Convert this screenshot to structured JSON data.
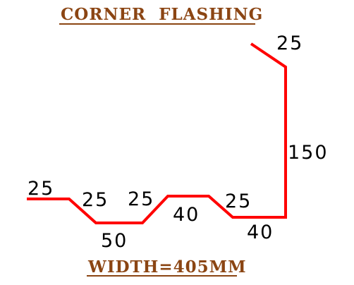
{
  "title": "CORNER  FLASHING",
  "footer": "WIDTH=405MM",
  "colors": {
    "profile": "#ff0000",
    "heading": "#8B4513",
    "dimension": "#000000"
  },
  "dimensions": {
    "left_flat": "25",
    "slope_down": "25",
    "bottom_flat": "50",
    "slope_up": "25",
    "top_flat": "40",
    "slope_down_right": "25",
    "right_flat": "40",
    "vertical": "150",
    "top_hook": "25"
  }
}
